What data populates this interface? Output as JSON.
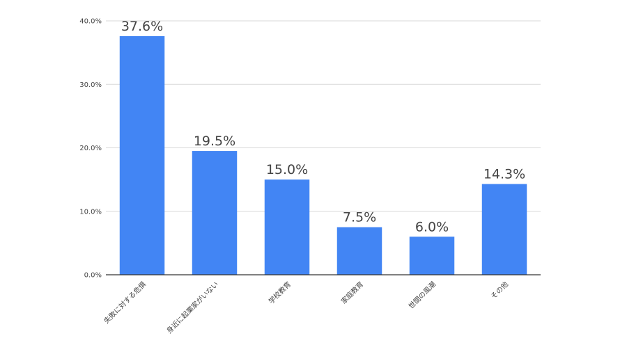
{
  "chart_data": {
    "type": "bar",
    "categories": [
      "失敗に対する危惧",
      "身近に起業家がいない",
      "学校教育",
      "家庭教育",
      "世間の風潮",
      "その他"
    ],
    "values": [
      37.6,
      19.5,
      15.0,
      7.5,
      6.0,
      14.3
    ],
    "value_labels": [
      "37.6%",
      "19.5%",
      "15.0%",
      "7.5%",
      "6.0%",
      "14.3%"
    ],
    "y_ticks": [
      0,
      10,
      20,
      30,
      40
    ],
    "y_tick_labels": [
      "0.0%",
      "10.0%",
      "20.0%",
      "30.0%",
      "40.0%"
    ],
    "ylim": [
      0,
      40
    ],
    "title": "",
    "xlabel": "",
    "ylabel": "",
    "grid": true,
    "legend": "none",
    "bar_color": "#4285f4"
  }
}
